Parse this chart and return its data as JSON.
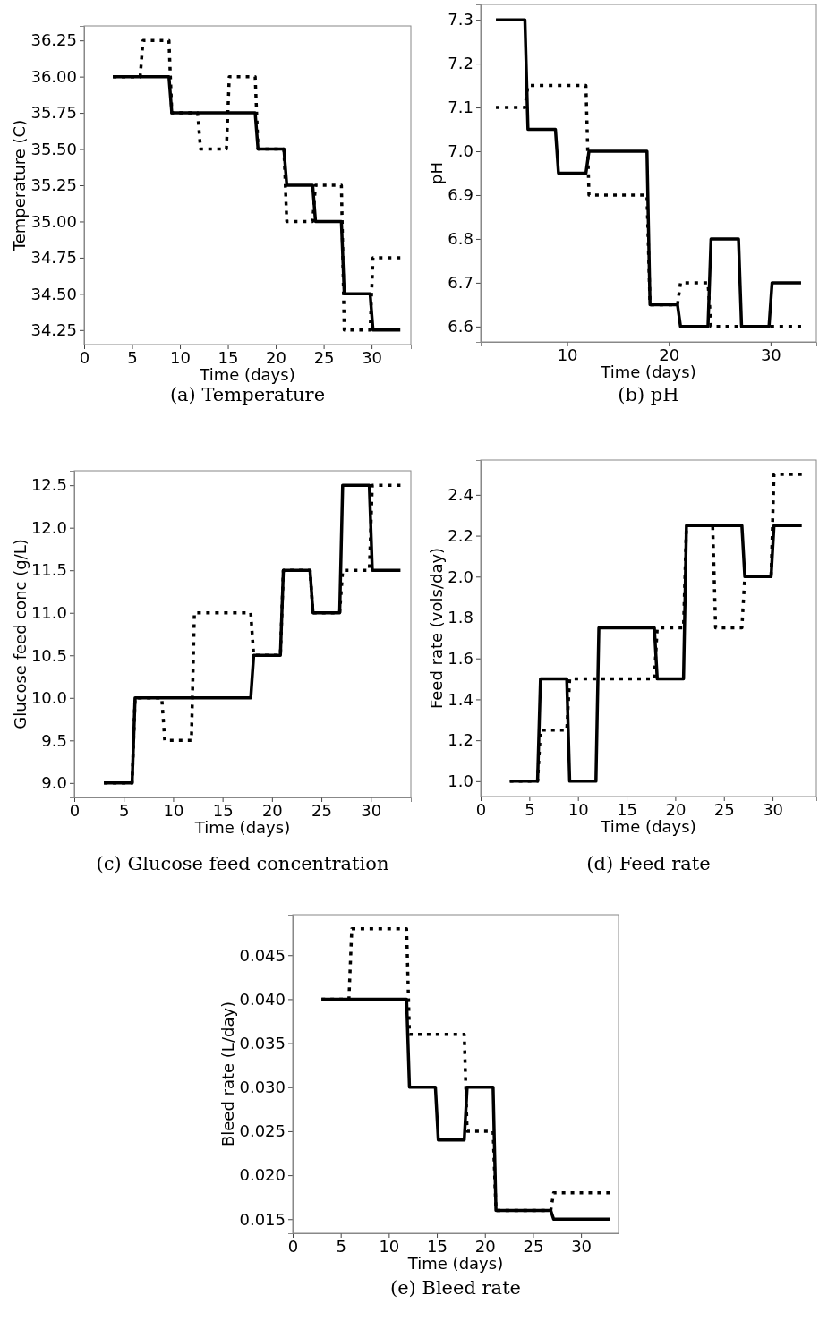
{
  "chart_data": [
    {
      "type": "line",
      "title": "(a) Temperature",
      "xlabel": "Time (days)",
      "ylabel": "Temperature (C)",
      "xlim": [
        0,
        34.1
      ],
      "xticks": [
        0,
        5,
        10,
        15,
        20,
        25,
        30
      ],
      "ylim": [
        34.15,
        36.35
      ],
      "yticks": [
        {
          "value": 34.25,
          "label": "34.25"
        },
        {
          "value": 34.5,
          "label": "34.50"
        },
        {
          "value": 34.75,
          "label": "34.75"
        },
        {
          "value": 35,
          "label": "35.00"
        },
        {
          "value": 35.25,
          "label": "35.25"
        },
        {
          "value": 35.5,
          "label": "35.50"
        },
        {
          "value": 35.75,
          "label": "35.75"
        },
        {
          "value": 36,
          "label": "36.00"
        },
        {
          "value": 36.25,
          "label": "36.25"
        }
      ],
      "x": [
        3,
        5.85,
        6.15,
        8.85,
        9.15,
        11.85,
        12.15,
        14.85,
        15.15,
        17.85,
        18.15,
        20.85,
        21.15,
        23.85,
        24.15,
        26.85,
        27.15,
        29.85,
        30.15,
        33
      ],
      "series": [
        {
          "color": "#000000",
          "line_style": "dotted",
          "values": [
            36,
            36,
            36.25,
            36.25,
            35.75,
            35.75,
            35.5,
            35.5,
            36,
            36,
            35.5,
            35.5,
            35,
            35,
            35.25,
            35.25,
            34.25,
            34.25,
            34.75,
            34.75
          ]
        },
        {
          "color": "#000000",
          "line_style": "solid",
          "values": [
            36,
            36,
            36,
            36,
            35.75,
            35.75,
            35.75,
            35.75,
            35.75,
            35.75,
            35.5,
            35.5,
            35.25,
            35.25,
            35,
            35,
            34.5,
            34.5,
            34.25,
            34.25
          ]
        }
      ]
    },
    {
      "type": "line",
      "title": "(b) pH",
      "xlabel": "Time (days)",
      "ylabel": "pH",
      "xlim": [
        1.5,
        34.5
      ],
      "xticks": [
        10,
        20,
        30
      ],
      "ylim": [
        6.565,
        7.335
      ],
      "yticks": [
        6.6,
        6.7,
        6.8,
        6.9,
        {
          "value": 7,
          "label": "7.0"
        },
        7.1,
        7.2,
        7.3
      ],
      "x": [
        3,
        5.85,
        6.15,
        8.85,
        9.15,
        11.85,
        12.15,
        14.85,
        15.15,
        17.85,
        18.15,
        20.85,
        21.15,
        23.85,
        24.15,
        26.85,
        27.15,
        29.85,
        30.15,
        33
      ],
      "series": [
        {
          "color": "#000000",
          "line_style": "dotted",
          "values": [
            7.1,
            7.1,
            7.15,
            7.15,
            7.15,
            7.15,
            6.9,
            6.9,
            6.9,
            6.9,
            6.65,
            6.65,
            6.7,
            6.7,
            6.6,
            6.6,
            6.6,
            6.6,
            6.6,
            6.6
          ]
        },
        {
          "color": "#000000",
          "line_style": "solid",
          "values": [
            7.3,
            7.3,
            7.05,
            7.05,
            6.95,
            6.95,
            7,
            7,
            7,
            7,
            6.65,
            6.65,
            6.6,
            6.6,
            6.8,
            6.8,
            6.6,
            6.6,
            6.7,
            6.7
          ]
        }
      ]
    },
    {
      "type": "line",
      "title": "(c) Glucose feed concentration",
      "xlabel": "Time (days)",
      "ylabel": "Glucose feed conc (g/L)",
      "xlim": [
        0,
        34.05
      ],
      "xticks": [
        0,
        5,
        10,
        15,
        20,
        25,
        30
      ],
      "ylim": [
        8.83,
        12.67
      ],
      "yticks": [
        {
          "value": 9,
          "label": "9.0"
        },
        9.5,
        {
          "value": 10,
          "label": "10.0"
        },
        10.5,
        {
          "value": 11,
          "label": "11.0"
        },
        11.5,
        {
          "value": 12,
          "label": "12.0"
        },
        12.5
      ],
      "x": [
        3,
        5.85,
        6.15,
        8.85,
        9.15,
        11.85,
        12.15,
        14.85,
        15.15,
        17.85,
        18.15,
        20.85,
        21.15,
        23.85,
        24.15,
        26.85,
        27.15,
        29.85,
        30.15,
        33
      ],
      "series": [
        {
          "color": "#000000",
          "line_style": "dotted",
          "values": [
            9,
            9,
            10,
            10,
            9.5,
            9.5,
            11,
            11,
            11,
            11,
            10.5,
            10.5,
            11.5,
            11.5,
            11,
            11,
            11.5,
            11.5,
            12.5,
            12.5
          ]
        },
        {
          "color": "#000000",
          "line_style": "solid",
          "values": [
            9,
            9,
            10,
            10,
            10,
            10,
            10,
            10,
            10,
            10,
            10.5,
            10.5,
            11.5,
            11.5,
            11,
            11,
            12.5,
            12.5,
            11.5,
            11.5
          ]
        }
      ]
    },
    {
      "type": "line",
      "title": "(d) Feed rate",
      "xlabel": "Time (days)",
      "ylabel": "Feed rate (vols/day)",
      "xlim": [
        0,
        34.5
      ],
      "xticks": [
        0,
        5,
        10,
        15,
        20,
        25,
        30
      ],
      "ylim": [
        0.925,
        2.57
      ],
      "yticks": [
        {
          "value": 1,
          "label": "1.0"
        },
        1.2,
        1.4,
        1.6,
        1.8,
        {
          "value": 2,
          "label": "2.0"
        },
        2.2,
        2.4
      ],
      "x": [
        3,
        5.85,
        6.15,
        8.85,
        9.15,
        11.85,
        12.15,
        14.85,
        15.15,
        17.85,
        18.15,
        20.85,
        21.15,
        23.85,
        24.15,
        26.85,
        27.15,
        29.85,
        30.15,
        33
      ],
      "series": [
        {
          "color": "#000000",
          "line_style": "dotted",
          "values": [
            1,
            1,
            1.25,
            1.25,
            1.5,
            1.5,
            1.5,
            1.5,
            1.5,
            1.5,
            1.75,
            1.75,
            2.25,
            2.25,
            1.75,
            1.75,
            2,
            2,
            2.5,
            2.5
          ]
        },
        {
          "color": "#000000",
          "line_style": "solid",
          "values": [
            1,
            1,
            1.5,
            1.5,
            1,
            1,
            1.75,
            1.75,
            1.75,
            1.75,
            1.5,
            1.5,
            2.25,
            2.25,
            2.25,
            2.25,
            2,
            2,
            2.25,
            2.25
          ]
        }
      ]
    },
    {
      "type": "line",
      "title": "(e) Bleed rate",
      "xlabel": "Time (days)",
      "ylabel": "Bleed rate (L/day)",
      "xlim": [
        0,
        33.9
      ],
      "xticks": [
        0,
        5,
        10,
        15,
        20,
        25,
        30
      ],
      "ylim": [
        0.0134,
        0.0496
      ],
      "yticks": [
        {
          "value": 0.015,
          "label": "0.015"
        },
        {
          "value": 0.02,
          "label": "0.020"
        },
        {
          "value": 0.025,
          "label": "0.025"
        },
        {
          "value": 0.03,
          "label": "0.030"
        },
        {
          "value": 0.035,
          "label": "0.035"
        },
        {
          "value": 0.04,
          "label": "0.040"
        },
        {
          "value": 0.045,
          "label": "0.045"
        }
      ],
      "x": [
        3,
        5.85,
        6.15,
        8.85,
        9.15,
        11.85,
        12.15,
        14.85,
        15.15,
        17.85,
        18.15,
        20.85,
        21.15,
        23.85,
        24.15,
        26.85,
        27.15,
        29.85,
        30.15,
        33
      ],
      "series": [
        {
          "color": "#000000",
          "line_style": "dotted",
          "values": [
            0.04,
            0.04,
            0.048,
            0.048,
            0.048,
            0.048,
            0.036,
            0.036,
            0.036,
            0.036,
            0.025,
            0.025,
            0.016,
            0.016,
            0.016,
            0.016,
            0.018,
            0.018,
            0.018,
            0.018
          ]
        },
        {
          "color": "#000000",
          "line_style": "solid",
          "values": [
            0.04,
            0.04,
            0.04,
            0.04,
            0.04,
            0.04,
            0.03,
            0.03,
            0.024,
            0.024,
            0.03,
            0.03,
            0.016,
            0.016,
            0.016,
            0.016,
            0.015,
            0.015,
            0.015,
            0.015
          ]
        }
      ]
    }
  ]
}
